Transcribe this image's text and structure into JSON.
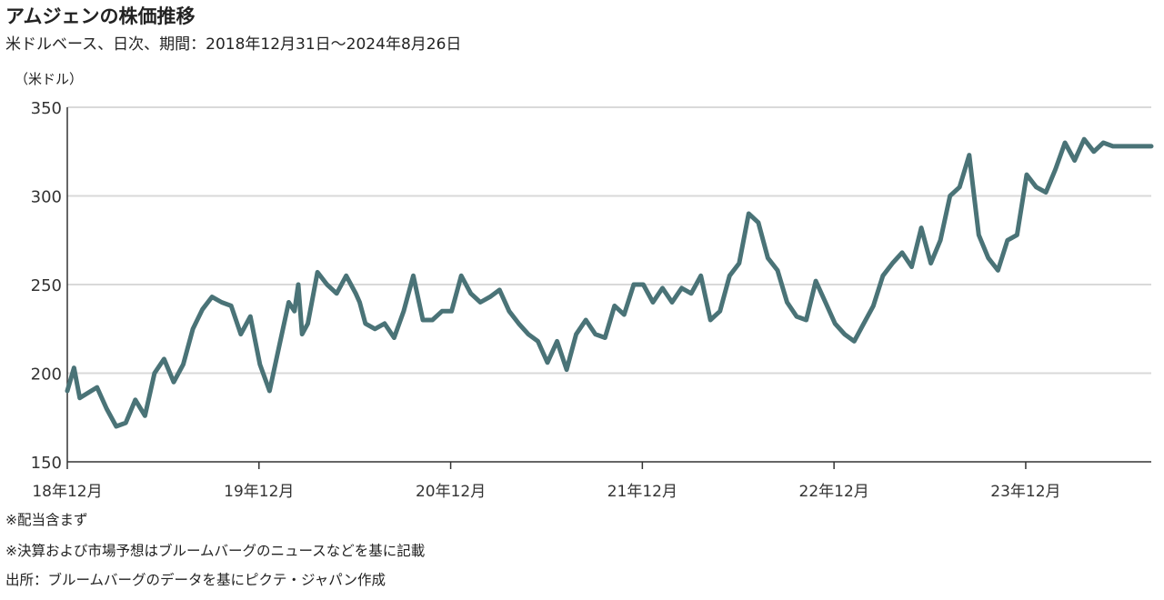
{
  "title": "アムジェンの株価推移",
  "subtitle": "米ドルベース、日次、期間：2018年12月31日～2024年8月26日",
  "notes": {
    "dividend": "※配当含まず",
    "forecast": "※決算および市場予想はブルームバーグのニュースなどを基に記載",
    "source": "出所：ブルームバーグのデータを基にピクテ・ジャパン作成"
  },
  "colors": {
    "line": "#4a7377",
    "grid": "#d9d9d9",
    "axis": "#333333"
  },
  "chart_data": {
    "type": "line",
    "ylabel": "（米ドル）",
    "ylim": [
      150,
      350
    ],
    "yticks": [
      150,
      200,
      250,
      300,
      350
    ],
    "xlim": [
      2018.995,
      2024.65
    ],
    "xticks": [
      {
        "value": 2018.995,
        "label": "18年12月"
      },
      {
        "value": 2019.995,
        "label": "19年12月"
      },
      {
        "value": 2020.995,
        "label": "20年12月"
      },
      {
        "value": 2021.995,
        "label": "21年12月"
      },
      {
        "value": 2022.995,
        "label": "22年12月"
      },
      {
        "value": 2023.995,
        "label": "23年12月"
      }
    ],
    "grid": true,
    "series": [
      {
        "x": [
          2018.995,
          2019.03,
          2019.06,
          2019.09,
          2019.12,
          2019.15,
          2019.2,
          2019.25,
          2019.3,
          2019.35,
          2019.4,
          2019.45,
          2019.5,
          2019.55,
          2019.6,
          2019.65,
          2019.7,
          2019.75,
          2019.8,
          2019.85,
          2019.9,
          2019.95,
          2020.0,
          2020.05,
          2020.1,
          2020.15,
          2020.18,
          2020.2,
          2020.22,
          2020.25,
          2020.3,
          2020.35,
          2020.4,
          2020.45,
          2020.5,
          2020.52,
          2020.55,
          2020.6,
          2020.65,
          2020.7,
          2020.75,
          2020.8,
          2020.85,
          2020.9,
          2020.95,
          2021.0,
          2021.05,
          2021.1,
          2021.15,
          2021.2,
          2021.25,
          2021.3,
          2021.35,
          2021.4,
          2021.45,
          2021.5,
          2021.55,
          2021.6,
          2021.65,
          2021.7,
          2021.75,
          2021.8,
          2021.85,
          2021.9,
          2021.95,
          2022.0,
          2022.05,
          2022.1,
          2022.15,
          2022.2,
          2022.25,
          2022.3,
          2022.35,
          2022.4,
          2022.45,
          2022.5,
          2022.55,
          2022.6,
          2022.65,
          2022.7,
          2022.75,
          2022.8,
          2022.85,
          2022.9,
          2022.95,
          2023.0,
          2023.05,
          2023.1,
          2023.15,
          2023.2,
          2023.25,
          2023.3,
          2023.35,
          2023.4,
          2023.45,
          2023.5,
          2023.55,
          2023.6,
          2023.65,
          2023.7,
          2023.75,
          2023.8,
          2023.85,
          2023.9,
          2023.95,
          2024.0,
          2024.05,
          2024.1,
          2024.15,
          2024.2,
          2024.25,
          2024.3,
          2024.35,
          2024.4,
          2024.45,
          2024.5,
          2024.55,
          2024.6,
          2024.65
        ],
        "values": [
          190,
          203,
          186,
          188,
          190,
          192,
          180,
          170,
          172,
          185,
          176,
          200,
          208,
          195,
          205,
          225,
          236,
          243,
          240,
          238,
          222,
          232,
          205,
          190,
          215,
          240,
          235,
          250,
          222,
          228,
          257,
          250,
          245,
          255,
          245,
          240,
          228,
          225,
          228,
          220,
          235,
          255,
          230,
          230,
          235,
          235,
          255,
          245,
          240,
          243,
          247,
          235,
          228,
          222,
          218,
          206,
          218,
          202,
          222,
          230,
          222,
          220,
          238,
          233,
          250,
          250,
          240,
          248,
          240,
          248,
          245,
          255,
          230,
          235,
          255,
          262,
          290,
          285,
          265,
          258,
          240,
          232,
          230,
          252,
          240,
          228,
          222,
          218,
          228,
          238,
          255,
          262,
          268,
          260,
          282,
          262,
          275,
          300,
          305,
          323,
          278,
          265,
          258,
          275,
          278,
          312,
          305,
          302,
          315,
          330,
          320,
          332,
          325,
          330,
          328,
          328,
          328,
          328,
          328
        ]
      }
    ]
  }
}
